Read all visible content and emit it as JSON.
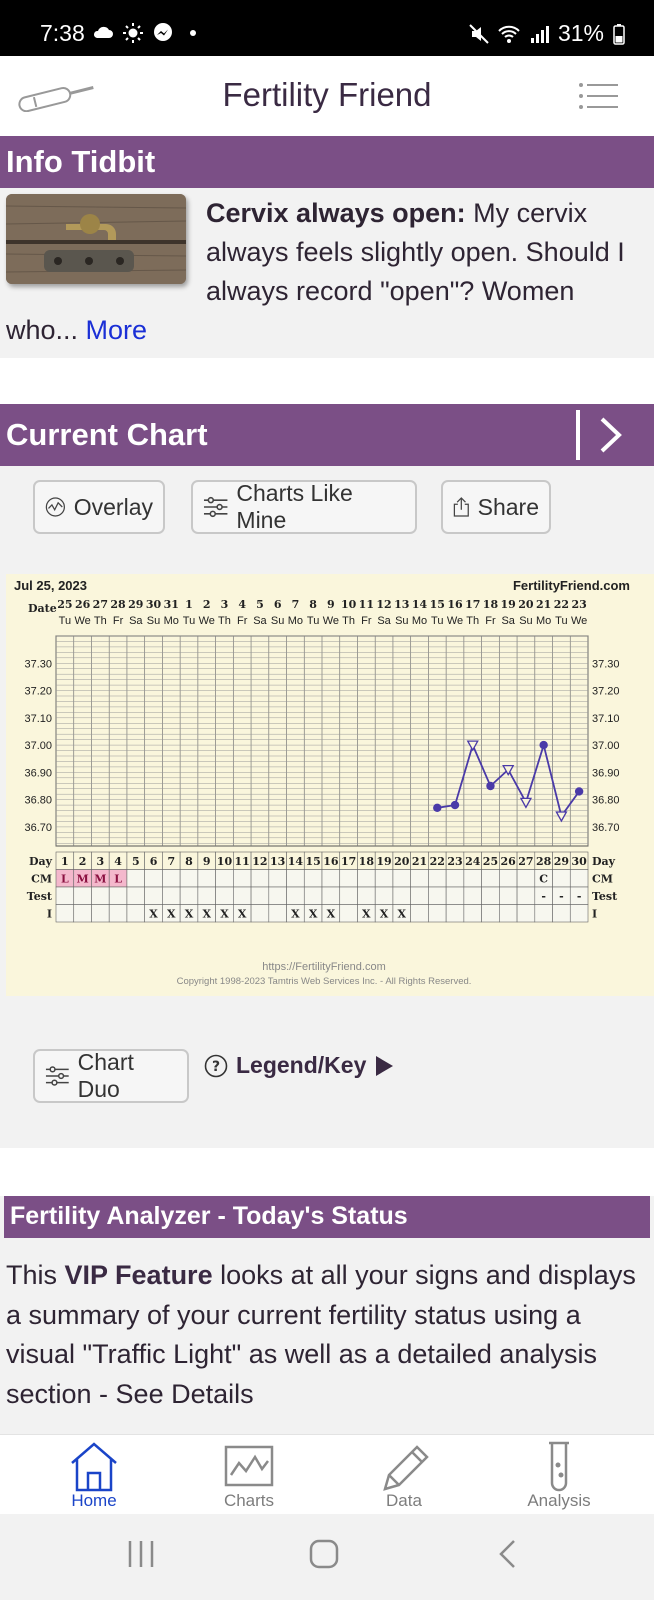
{
  "status_bar": {
    "time": "7:38",
    "battery": "31%"
  },
  "app_bar": {
    "title": "Fertility Friend"
  },
  "info_tidbit": {
    "heading": "Info Tidbit",
    "bold": "Cervix always open:",
    "text": " My cervix always feels slightly open. Should I always record \"open\"? Women who... ",
    "more": "More"
  },
  "current_chart": {
    "heading": "Current Chart",
    "buttons": {
      "overlay": "Overlay",
      "charts_like_mine": "Charts Like Mine",
      "share": "Share"
    },
    "chart_duo": "Chart Duo",
    "legend_key": "Legend/Key"
  },
  "chart_data": {
    "type": "line",
    "date": "Jul 25, 2023",
    "brand": "FertilityFriend.com",
    "row_labels": {
      "date": "Date",
      "day": "Day",
      "cm": "CM",
      "test": "Test",
      "i": "I"
    },
    "dates": [
      "25",
      "26",
      "27",
      "28",
      "29",
      "30",
      "31",
      "1",
      "2",
      "3",
      "4",
      "5",
      "6",
      "7",
      "8",
      "9",
      "10",
      "11",
      "12",
      "13",
      "14",
      "15",
      "16",
      "17",
      "18",
      "19",
      "20",
      "21",
      "22",
      "23"
    ],
    "weekdays": [
      "Tu",
      "We",
      "Th",
      "Fr",
      "Sa",
      "Su",
      "Mo",
      "Tu",
      "We",
      "Th",
      "Fr",
      "Sa",
      "Su",
      "Mo",
      "Tu",
      "We",
      "Th",
      "Fr",
      "Sa",
      "Su",
      "Mo",
      "Tu",
      "We",
      "Th",
      "Fr",
      "Sa",
      "Su",
      "Mo",
      "Tu",
      "We"
    ],
    "days": [
      "1",
      "2",
      "3",
      "4",
      "5",
      "6",
      "7",
      "8",
      "9",
      "10",
      "11",
      "12",
      "13",
      "14",
      "15",
      "16",
      "17",
      "18",
      "19",
      "20",
      "21",
      "22",
      "23",
      "24",
      "25",
      "26",
      "27",
      "28",
      "29",
      "30"
    ],
    "y_ticks": [
      "37.30",
      "37.20",
      "37.10",
      "37.00",
      "36.90",
      "36.80",
      "36.70"
    ],
    "ylim": [
      36.6,
      37.4
    ],
    "cm": [
      "L",
      "M",
      "M",
      "L",
      "",
      "",
      "",
      "",
      "",
      "",
      "",
      "",
      "",
      "",
      "",
      "",
      "",
      "",
      "",
      "",
      "",
      "",
      "",
      "",
      "",
      "",
      "",
      "C",
      "",
      ""
    ],
    "test": [
      "",
      "",
      "",
      "",
      "",
      "",
      "",
      "",
      "",
      "",
      "",
      "",
      "",
      "",
      "",
      "",
      "",
      "",
      "",
      "",
      "",
      "",
      "",
      "",
      "",
      "",
      "",
      "-",
      "-",
      "-"
    ],
    "intercourse": [
      "",
      "",
      "",
      "",
      "",
      "X",
      "X",
      "X",
      "X",
      "X",
      "X",
      "",
      "",
      "X",
      "X",
      "X",
      "",
      "X",
      "X",
      "X",
      "",
      "",
      "",
      "",
      "",
      "",
      "",
      "",
      "",
      ""
    ],
    "temps": [
      {
        "day": 22,
        "temp": 36.77,
        "marker": "dot"
      },
      {
        "day": 23,
        "temp": 36.78,
        "marker": "dot"
      },
      {
        "day": 24,
        "temp": 37.0,
        "marker": "open-triangle"
      },
      {
        "day": 25,
        "temp": 36.85,
        "marker": "dot"
      },
      {
        "day": 26,
        "temp": 36.91,
        "marker": "open-triangle"
      },
      {
        "day": 27,
        "temp": 36.79,
        "marker": "open-triangle"
      },
      {
        "day": 28,
        "temp": 37.0,
        "marker": "dot"
      },
      {
        "day": 29,
        "temp": 36.74,
        "marker": "open-triangle"
      },
      {
        "day": 30,
        "temp": 36.83,
        "marker": "dot"
      }
    ],
    "footer_url": "https://FertilityFriend.com",
    "footer_copyright": "Copyright 1998-2023 Tamtris Web Services Inc. - All Rights Reserved.",
    "colors": {
      "line": "#4a3aa8",
      "cm_fill": "#f4b8cc",
      "background": "#faf6dc",
      "grid": "#555555"
    }
  },
  "fertility_analyzer": {
    "heading": "Fertility Analyzer - Today's Status",
    "pre": "This ",
    "bold": "VIP Feature",
    "text": " looks at all your signs and displays a summary of your current fertility status using a visual \"Traffic Light\" as well as a detailed analysis section - See Details"
  },
  "bottom_nav": {
    "items": [
      {
        "label": "Home",
        "icon": "home-icon"
      },
      {
        "label": "Charts",
        "icon": "chart-icon"
      },
      {
        "label": "Data",
        "icon": "pencil-icon"
      },
      {
        "label": "Analysis",
        "icon": "test-tube-icon"
      }
    ]
  }
}
